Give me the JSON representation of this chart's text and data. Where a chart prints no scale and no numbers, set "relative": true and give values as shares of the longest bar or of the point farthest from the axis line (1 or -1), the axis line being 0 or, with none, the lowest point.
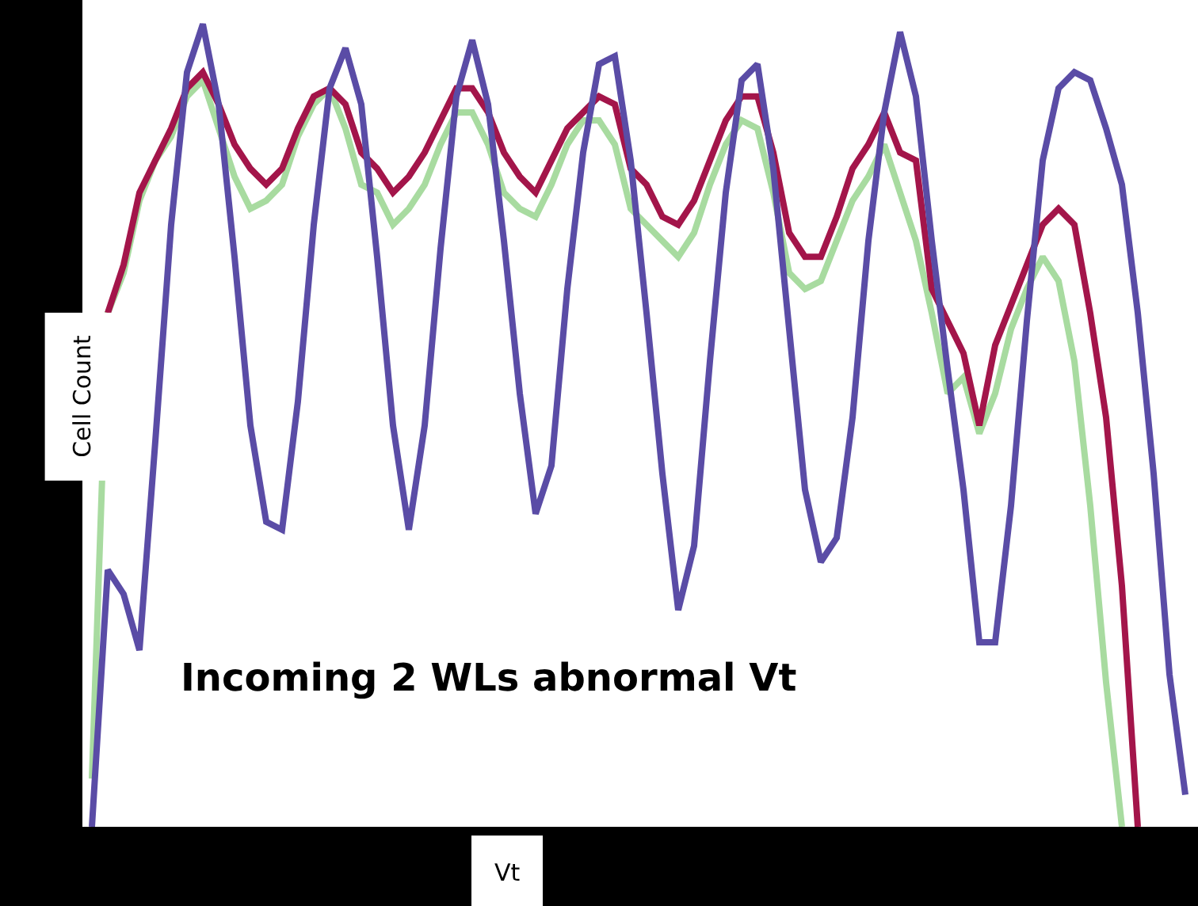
{
  "chart_data": {
    "type": "line",
    "relative": true,
    "xlabel": "Vt",
    "ylabel": "Cell Count",
    "annotations": [
      "Incoming 2 WLs abnormal Vt"
    ],
    "categories": [
      null,
      null,
      null,
      null,
      null,
      null,
      null,
      null,
      null,
      null,
      null,
      null,
      null,
      null,
      null,
      null,
      null,
      null,
      null,
      null,
      null,
      null,
      null,
      null,
      null,
      null,
      null,
      null,
      null,
      null,
      null,
      null,
      null,
      null,
      null,
      null,
      null,
      null,
      null,
      null,
      null,
      null,
      null,
      null,
      null,
      null,
      null,
      null,
      null,
      null,
      null,
      null,
      null,
      null,
      null,
      null,
      null,
      null,
      null,
      null,
      null,
      null,
      null,
      null,
      null,
      null,
      null,
      null,
      null,
      null
    ],
    "series": [
      {
        "color": "#a8dba0",
        "values": [
          0.06,
          0.64,
          0.69,
          0.78,
          0.83,
          0.86,
          0.91,
          0.93,
          0.87,
          0.81,
          0.77,
          0.78,
          0.8,
          0.86,
          0.9,
          0.92,
          0.87,
          0.8,
          0.79,
          0.75,
          0.77,
          0.8,
          0.85,
          0.89,
          0.89,
          0.85,
          0.79,
          0.77,
          0.76,
          0.8,
          0.85,
          0.88,
          0.88,
          0.85,
          0.77,
          0.75,
          0.73,
          0.71,
          0.74,
          0.8,
          0.85,
          0.88,
          0.87,
          0.79,
          0.69,
          0.67,
          0.68,
          0.73,
          0.78,
          0.81,
          0.85,
          0.79,
          0.73,
          0.64,
          0.54,
          0.56,
          0.49,
          0.54,
          0.62,
          0.67,
          0.71,
          0.68,
          0.58,
          0.4,
          0.18,
          0,
          null,
          null,
          null,
          null
        ]
      },
      {
        "color": "#a3154a",
        "values": [
          null,
          0.64,
          0.7,
          0.79,
          0.83,
          0.87,
          0.92,
          0.94,
          0.9,
          0.85,
          0.82,
          0.8,
          0.82,
          0.87,
          0.91,
          0.92,
          0.9,
          0.84,
          0.82,
          0.79,
          0.81,
          0.84,
          0.88,
          0.92,
          0.92,
          0.89,
          0.84,
          0.81,
          0.79,
          0.83,
          0.87,
          0.89,
          0.91,
          0.9,
          0.82,
          0.8,
          0.76,
          0.75,
          0.78,
          0.83,
          0.88,
          0.91,
          0.91,
          0.84,
          0.74,
          0.71,
          0.71,
          0.76,
          0.82,
          0.85,
          0.89,
          0.84,
          0.83,
          0.67,
          0.63,
          0.59,
          0.5,
          0.6,
          0.65,
          0.7,
          0.75,
          0.77,
          0.75,
          0.64,
          0.51,
          0.3,
          0,
          null,
          null,
          null
        ]
      },
      {
        "color": "#5a4ca6",
        "values": [
          0,
          0.32,
          0.29,
          0.22,
          0.48,
          0.75,
          0.94,
          1.0,
          0.9,
          0.71,
          0.5,
          0.38,
          0.37,
          0.53,
          0.75,
          0.92,
          0.97,
          0.9,
          0.71,
          0.5,
          0.37,
          0.5,
          0.72,
          0.91,
          0.98,
          0.9,
          0.73,
          0.54,
          0.39,
          0.45,
          0.67,
          0.84,
          0.95,
          0.96,
          0.83,
          0.64,
          0.44,
          0.27,
          0.35,
          0.58,
          0.79,
          0.93,
          0.95,
          0.82,
          0.62,
          0.42,
          0.33,
          0.36,
          0.51,
          0.73,
          0.89,
          0.99,
          0.91,
          0.73,
          0.57,
          0.42,
          0.23,
          0.23,
          0.4,
          0.63,
          0.83,
          0.92,
          0.94,
          0.93,
          0.87,
          0.8,
          0.64,
          0.44,
          0.19,
          0.04
        ]
      }
    ]
  }
}
